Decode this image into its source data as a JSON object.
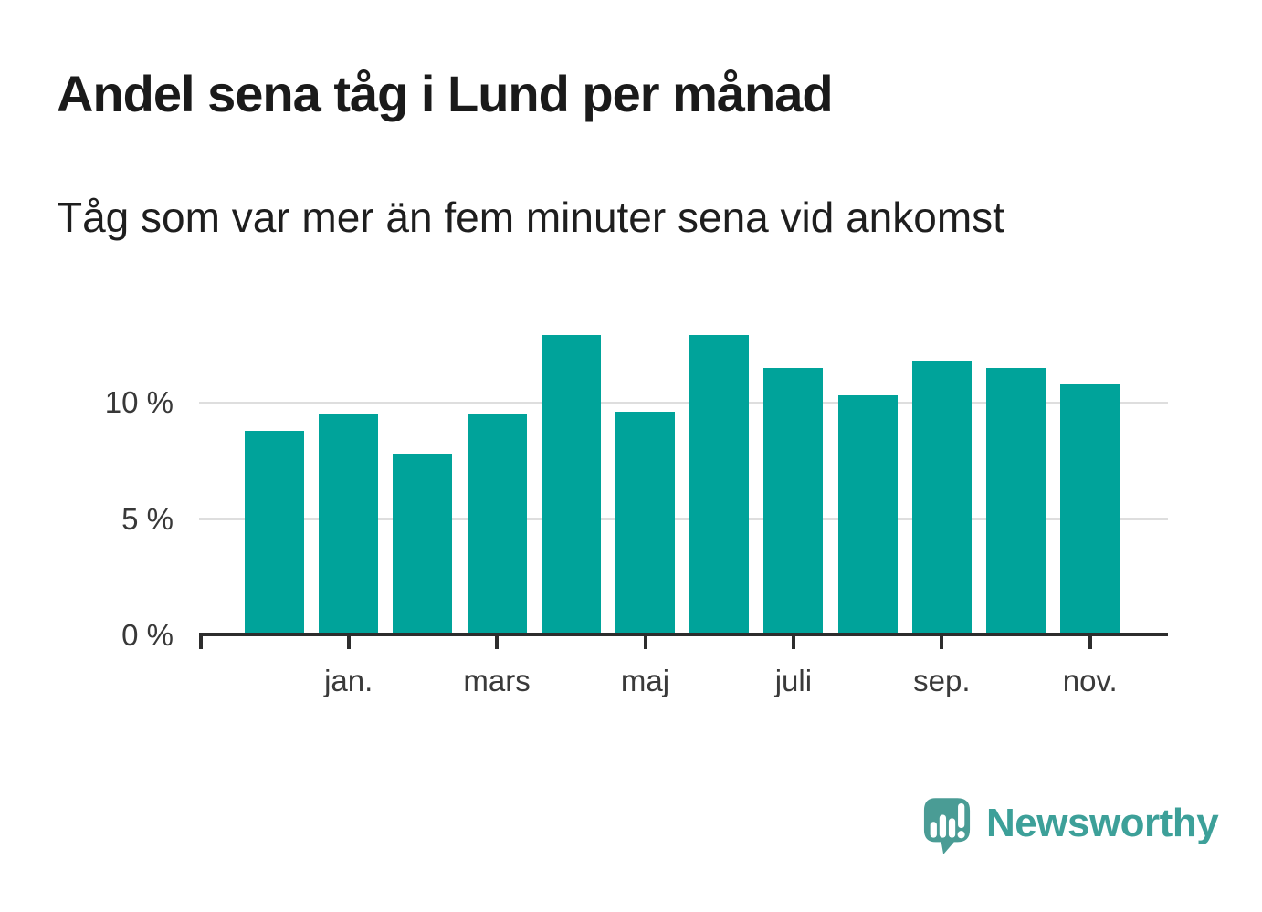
{
  "chart_data": {
    "type": "bar",
    "title": "Andel sena tåg i Lund per månad",
    "subtitle": "Tåg som var mer än fem minuter sena vid ankomst",
    "values": [
      8.8,
      9.5,
      7.8,
      9.5,
      12.9,
      9.6,
      12.9,
      11.5,
      10.3,
      11.8,
      11.5,
      10.8
    ],
    "value_unit": "percent",
    "bar_color": "#00a39a",
    "bar_count": 12,
    "x_axis": {
      "tick_labels": [
        "jan.",
        "mars",
        "maj",
        "juli",
        "sep.",
        "nov."
      ],
      "labeled_bar_indexes": [
        1,
        3,
        5,
        7,
        9,
        11
      ],
      "leading_unlabeled_tick": true
    },
    "y_axis": {
      "ticks": [
        {
          "value": 0,
          "label": "0 %"
        },
        {
          "value": 5,
          "label": "5 %"
        },
        {
          "value": 10,
          "label": "10 %"
        }
      ],
      "gridline_values": [
        5,
        10
      ],
      "range": [
        0,
        13.9
      ]
    },
    "grid": "horizontal",
    "legend": "none"
  },
  "branding": {
    "logo_text": "Newsworthy",
    "logo_text_color": "#3da099",
    "logo_mark_color": "#4a9c95",
    "logo_mark_icon": "speech-bubble-bar-chart-exclamation"
  }
}
